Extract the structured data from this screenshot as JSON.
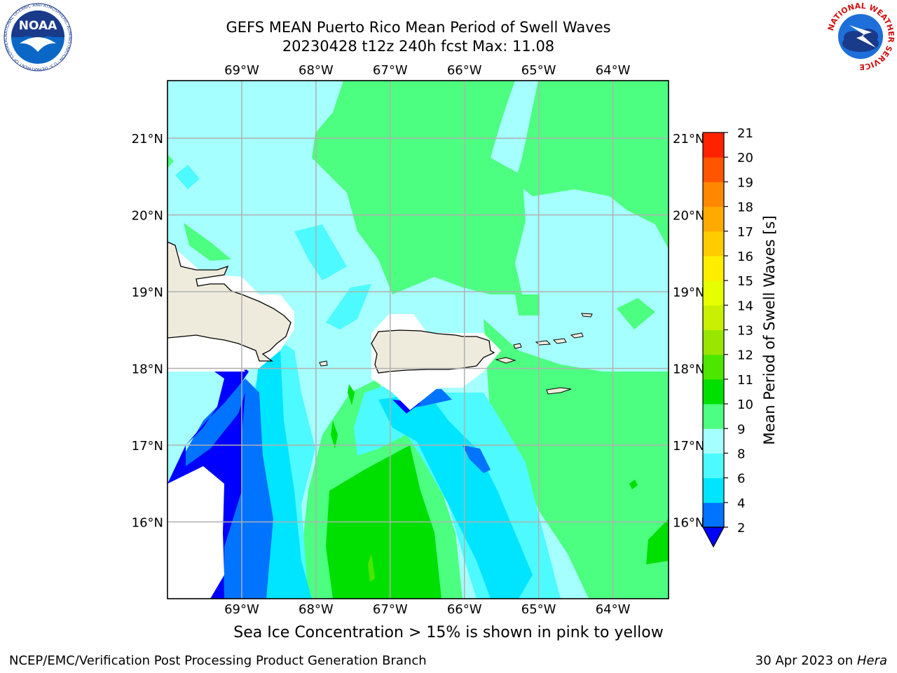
{
  "title_line1": "GEFS MEAN Puerto Rico Mean Period of Swell Waves",
  "title_line2": "20230428 t12z 240h fcst    Max: 11.08",
  "subtitle": "Sea Ice Concentration > 15% is shown in pink to yellow",
  "footer_left": "NCEP/EMC/Verification Post Processing Product Generation Branch",
  "footer_right_prefix": "30 Apr 2023 on ",
  "footer_right_host": "Hera",
  "logos": {
    "noaa_text": "NOAA",
    "noaa_ring_text": "NATIONAL OCEANIC AND ATMOSPHERIC ADMINISTRATION · U.S. DEPARTMENT OF COMMERCE",
    "nws_ring_text": "NATIONAL WEATHER SERVICE"
  },
  "map": {
    "lon_labels": [
      "69°W",
      "68°W",
      "67°W",
      "66°W",
      "65°W",
      "64°W"
    ],
    "lat_labels": [
      "21°N",
      "20°N",
      "19°N",
      "18°N",
      "17°N",
      "16°N"
    ],
    "lon_values": [
      -69,
      -68,
      -67,
      -66,
      -65,
      -64
    ],
    "lat_values": [
      21,
      20,
      19,
      18,
      17,
      16
    ],
    "lon_range": [
      -70.0,
      -63.25
    ],
    "lat_range": [
      15.0,
      21.75
    ],
    "land_color": "#efebdc",
    "grid_color": "#b0b0b0"
  },
  "colorbar": {
    "label": "Mean Period of Swell Waves [s]",
    "ticks": [
      "2",
      "4",
      "6",
      "8",
      "9",
      "10",
      "11",
      "12",
      "13",
      "14",
      "15",
      "16",
      "17",
      "18",
      "19",
      "20",
      "21"
    ],
    "colors": [
      "#0073ff",
      "#00e5ff",
      "#4dfaff",
      "#a6ffff",
      "#4dff80",
      "#00e000",
      "#4de600",
      "#99e600",
      "#c8f000",
      "#e6ff00",
      "#ffee00",
      "#ffcc00",
      "#ffaa00",
      "#ff8800",
      "#ff5500",
      "#ff2200"
    ],
    "under_color": "#0000ff"
  }
}
